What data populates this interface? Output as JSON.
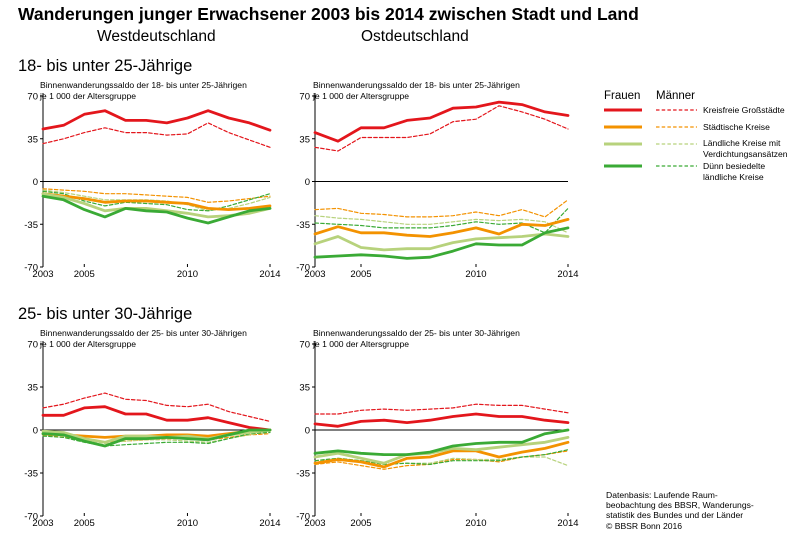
{
  "title": "Wanderungen junger Erwachsener 2003 bis 2014 zwischen Stadt und Land",
  "regions": {
    "west": "Westdeutschland",
    "east": "Ostdeutschland"
  },
  "age_groups": {
    "first": "18- bis unter 25-Jährige",
    "second": "25- bis unter 30-Jährige"
  },
  "axis_labels": {
    "first": [
      "Binnenwanderungssaldo der 18- bis unter 25-Jährigen",
      "je 1 000 der Altersgruppe"
    ],
    "second": [
      "Binnenwanderungssaldo der 25- bis unter 30-Jährigen",
      "je 1 000 der Altersgruppe"
    ]
  },
  "legend": {
    "frauen": "Frauen",
    "maenner": "Männer",
    "items": [
      {
        "label": "Kreisfreie Großstädte",
        "color": "#e3161c"
      },
      {
        "label": "Städtische Kreise",
        "color": "#f39200"
      },
      {
        "label": "Ländliche Kreise mit Verdichtungsansätzen",
        "lines": [
          "Ländliche Kreise mit",
          "Verdichtungsansätzen"
        ],
        "color": "#b7d27c"
      },
      {
        "label": "Dünn besiedelte ländliche Kreise",
        "lines": [
          "Dünn besiedelte",
          "ländliche Kreise"
        ],
        "color": "#3aaa35"
      }
    ]
  },
  "source": "Datenbasis: Laufende Raumbeobachtung des BBSR, Wanderungsstatistik des Bundes und der Länder © BBSR Bonn 2016",
  "source_lines": [
    "Datenbasis: Laufende Raum-",
    "beobachtung des BBSR, Wanderungs-",
    "statistik des Bundes und der Länder",
    "© BBSR Bonn 2016"
  ],
  "chart_data": [
    {
      "type": "line",
      "title": "18- bis unter 25-Jährige – Westdeutschland",
      "ylabel": "Binnenwanderungssaldo der 18- bis unter 25-Jährigen je 1 000 der Altersgruppe",
      "x": [
        2003,
        2004,
        2005,
        2006,
        2007,
        2008,
        2009,
        2010,
        2011,
        2012,
        2013,
        2014
      ],
      "xticks": [
        2003,
        2005,
        2010,
        2014
      ],
      "yticks": [
        70,
        35,
        0,
        -35,
        -70
      ],
      "ylim": [
        -70,
        70
      ],
      "grid": false,
      "series": [
        {
          "name": "Kreisfreie Großstädte",
          "sex": "Frauen",
          "values": [
            43,
            46,
            55,
            58,
            50,
            50,
            48,
            52,
            58,
            52,
            48,
            42
          ]
        },
        {
          "name": "Städtische Kreise",
          "sex": "Frauen",
          "values": [
            -10,
            -12,
            -14,
            -17,
            -16,
            -16,
            -17,
            -18,
            -22,
            -23,
            -22,
            -20
          ]
        },
        {
          "name": "Ländliche Kreise mit Verdichtungsansätzen",
          "sex": "Frauen",
          "values": [
            -10,
            -13,
            -18,
            -24,
            -22,
            -22,
            -24,
            -26,
            -29,
            -28,
            -26,
            -22
          ]
        },
        {
          "name": "Dünn besiedelte ländliche Kreise",
          "sex": "Frauen",
          "values": [
            -12,
            -15,
            -23,
            -29,
            -22,
            -24,
            -25,
            -30,
            -34,
            -29,
            -24,
            -22
          ]
        },
        {
          "name": "Kreisfreie Großstädte",
          "sex": "Männer",
          "values": [
            31,
            35,
            40,
            44,
            40,
            40,
            38,
            39,
            48,
            40,
            34,
            28
          ]
        },
        {
          "name": "Städtische Kreise",
          "sex": "Männer",
          "values": [
            -6,
            -7,
            -8,
            -10,
            -10,
            -11,
            -12,
            -13,
            -17,
            -16,
            -14,
            -12
          ]
        },
        {
          "name": "Ländliche Kreise mit Verdichtungsansätzen",
          "sex": "Männer",
          "values": [
            -7,
            -9,
            -12,
            -15,
            -15,
            -15,
            -16,
            -19,
            -24,
            -22,
            -18,
            -13
          ]
        },
        {
          "name": "Dünn besiedelte ländliche Kreise",
          "sex": "Männer",
          "values": [
            -8,
            -10,
            -16,
            -20,
            -17,
            -18,
            -19,
            -23,
            -24,
            -20,
            -15,
            -10
          ]
        }
      ]
    },
    {
      "type": "line",
      "title": "18- bis unter 25-Jährige – Ostdeutschland",
      "ylabel": "Binnenwanderungssaldo der 18- bis unter 25-Jährigen je 1 000 der Altersgruppe",
      "x": [
        2003,
        2004,
        2005,
        2006,
        2007,
        2008,
        2009,
        2010,
        2011,
        2012,
        2013,
        2014
      ],
      "xticks": [
        2003,
        2005,
        2010,
        2014
      ],
      "yticks": [
        70,
        35,
        0,
        -35,
        -70
      ],
      "ylim": [
        -70,
        70
      ],
      "grid": false,
      "series": [
        {
          "name": "Kreisfreie Großstädte",
          "sex": "Frauen",
          "values": [
            40,
            33,
            44,
            44,
            50,
            52,
            60,
            61,
            65,
            63,
            57,
            54
          ]
        },
        {
          "name": "Städtische Kreise",
          "sex": "Frauen",
          "values": [
            -43,
            -37,
            -42,
            -42,
            -44,
            -45,
            -42,
            -38,
            -43,
            -35,
            -36,
            -31
          ]
        },
        {
          "name": "Ländliche Kreise mit Verdichtungsansätzen",
          "sex": "Frauen",
          "values": [
            -51,
            -45,
            -54,
            -56,
            -55,
            -55,
            -50,
            -47,
            -46,
            -45,
            -43,
            -45
          ]
        },
        {
          "name": "Dünn besiedelte ländliche Kreise",
          "sex": "Frauen",
          "values": [
            -62,
            -61,
            -60,
            -61,
            -63,
            -62,
            -57,
            -51,
            -52,
            -52,
            -42,
            -38
          ]
        },
        {
          "name": "Kreisfreie Großstädte",
          "sex": "Männer",
          "values": [
            28,
            25,
            36,
            36,
            36,
            39,
            49,
            51,
            62,
            57,
            51,
            43
          ]
        },
        {
          "name": "Städtische Kreise",
          "sex": "Männer",
          "values": [
            -23,
            -22,
            -26,
            -27,
            -29,
            -29,
            -28,
            -25,
            -28,
            -23,
            -29,
            -15
          ]
        },
        {
          "name": "Ländliche Kreise mit Verdichtungsansätzen",
          "sex": "Männer",
          "values": [
            -28,
            -30,
            -31,
            -33,
            -35,
            -35,
            -33,
            -31,
            -32,
            -31,
            -33,
            -42
          ]
        },
        {
          "name": "Dünn besiedelte ländliche Kreise",
          "sex": "Männer",
          "values": [
            -34,
            -35,
            -36,
            -38,
            -38,
            -38,
            -36,
            -33,
            -35,
            -34,
            -42,
            -22
          ]
        }
      ]
    },
    {
      "type": "line",
      "title": "25- bis unter 30-Jährige – Westdeutschland",
      "ylabel": "Binnenwanderungssaldo der 25- bis unter 30-Jährigen je 1 000 der Altersgruppe",
      "x": [
        2003,
        2004,
        2005,
        2006,
        2007,
        2008,
        2009,
        2010,
        2011,
        2012,
        2013,
        2014
      ],
      "xticks": [
        2003,
        2005,
        2010,
        2014
      ],
      "yticks": [
        70,
        35,
        0,
        -35,
        -70
      ],
      "ylim": [
        -70,
        70
      ],
      "grid": false,
      "series": [
        {
          "name": "Kreisfreie Großstädte",
          "sex": "Frauen",
          "values": [
            12,
            12,
            18,
            19,
            13,
            13,
            8,
            8,
            10,
            6,
            2,
            0
          ]
        },
        {
          "name": "Städtische Kreise",
          "sex": "Frauen",
          "values": [
            -3,
            -4,
            -5,
            -6,
            -5,
            -5,
            -4,
            -4,
            -5,
            -3,
            -1,
            0
          ]
        },
        {
          "name": "Ländliche Kreise mit Verdichtungsansätzen",
          "sex": "Frauen",
          "values": [
            -1,
            -2,
            -7,
            -10,
            -5,
            -5,
            -6,
            -5,
            -7,
            -4,
            -2,
            0
          ]
        },
        {
          "name": "Dünn besiedelte ländliche Kreise",
          "sex": "Frauen",
          "values": [
            -3,
            -4,
            -9,
            -13,
            -7,
            -7,
            -6,
            -7,
            -8,
            -4,
            0,
            0
          ]
        },
        {
          "name": "Kreisfreie Großstädte",
          "sex": "Männer",
          "values": [
            18,
            21,
            26,
            30,
            25,
            24,
            20,
            19,
            21,
            15,
            11,
            7
          ]
        },
        {
          "name": "Städtische Kreise",
          "sex": "Männer",
          "values": [
            -4,
            -6,
            -8,
            -10,
            -9,
            -8,
            -7,
            -7,
            -8,
            -6,
            -4,
            -3
          ]
        },
        {
          "name": "Ländliche Kreise mit Verdichtungsansätzen",
          "sex": "Männer",
          "values": [
            -2,
            -4,
            -8,
            -11,
            -9,
            -8,
            -8,
            -9,
            -10,
            -7,
            -4,
            -1
          ]
        },
        {
          "name": "Dünn besiedelte ländliche Kreise",
          "sex": "Männer",
          "values": [
            -5,
            -6,
            -10,
            -13,
            -12,
            -11,
            -10,
            -10,
            -11,
            -7,
            -3,
            -2
          ]
        }
      ]
    },
    {
      "type": "line",
      "title": "25- bis unter 30-Jährige – Ostdeutschland",
      "ylabel": "Binnenwanderungssaldo der 25- bis unter 30-Jährigen je 1 000 der Altersgruppe",
      "x": [
        2003,
        2004,
        2005,
        2006,
        2007,
        2008,
        2009,
        2010,
        2011,
        2012,
        2013,
        2014
      ],
      "xticks": [
        2003,
        2005,
        2010,
        2014
      ],
      "yticks": [
        70,
        35,
        0,
        -35,
        -70
      ],
      "ylim": [
        -70,
        70
      ],
      "grid": false,
      "series": [
        {
          "name": "Kreisfreie Großstädte",
          "sex": "Frauen",
          "values": [
            5,
            3,
            7,
            8,
            6,
            8,
            11,
            13,
            11,
            11,
            8,
            6
          ]
        },
        {
          "name": "Städtische Kreise",
          "sex": "Frauen",
          "values": [
            -27,
            -24,
            -26,
            -30,
            -23,
            -22,
            -17,
            -17,
            -22,
            -18,
            -15,
            -10
          ]
        },
        {
          "name": "Ländliche Kreise mit Verdichtungsansätzen",
          "sex": "Frauen",
          "values": [
            -22,
            -19,
            -23,
            -27,
            -20,
            -19,
            -15,
            -16,
            -14,
            -12,
            -10,
            -6
          ]
        },
        {
          "name": "Dünn besiedelte ländliche Kreise",
          "sex": "Frauen",
          "values": [
            -19,
            -17,
            -19,
            -20,
            -20,
            -18,
            -13,
            -11,
            -10,
            -10,
            -3,
            0
          ]
        },
        {
          "name": "Kreisfreie Großstädte",
          "sex": "Männer",
          "values": [
            13,
            13,
            16,
            17,
            16,
            17,
            18,
            21,
            20,
            20,
            17,
            14
          ]
        },
        {
          "name": "Städtische Kreise",
          "sex": "Männer",
          "values": [
            -28,
            -26,
            -29,
            -32,
            -29,
            -28,
            -24,
            -24,
            -26,
            -22,
            -20,
            -17
          ]
        },
        {
          "name": "Ländliche Kreise mit Verdichtungsansätzen",
          "sex": "Männer",
          "values": [
            -25,
            -23,
            -25,
            -28,
            -27,
            -27,
            -23,
            -24,
            -24,
            -22,
            -22,
            -29
          ]
        },
        {
          "name": "Dünn besiedelte ländliche Kreise",
          "sex": "Männer",
          "values": [
            -25,
            -23,
            -25,
            -28,
            -27,
            -28,
            -25,
            -25,
            -25,
            -22,
            -20,
            -16
          ]
        }
      ]
    }
  ]
}
